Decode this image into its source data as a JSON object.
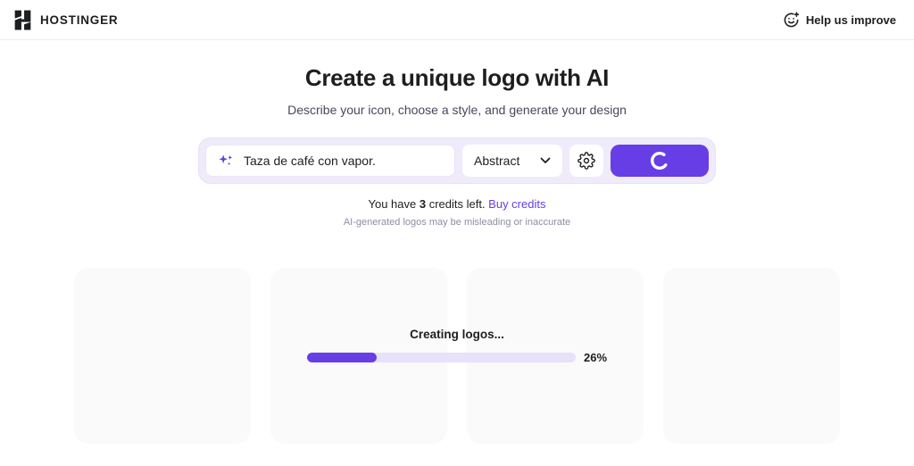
{
  "header": {
    "brand": "HOSTINGER",
    "help_label": "Help us improve"
  },
  "hero": {
    "title": "Create a unique logo with AI",
    "subtitle": "Describe your icon, choose a style, and generate your design"
  },
  "toolbar": {
    "prompt_value": "Taza de café con vapor.",
    "style_selected": "Abstract",
    "icons": {
      "prompt": "sparkle-icon",
      "style": "chevron-down-icon",
      "settings": "gear-icon",
      "generate": "spinner-icon"
    }
  },
  "credits": {
    "prefix": "You have ",
    "count": "3",
    "suffix": " credits left. ",
    "link": "Buy credits"
  },
  "disclaimer": "AI-generated logos may be misleading or inaccurate",
  "progress": {
    "label": "Creating logos...",
    "percent": 26,
    "percent_label": "26%"
  },
  "placeholders": {
    "count": 4
  },
  "colors": {
    "accent": "#673DE6",
    "toolbar_bg": "#EFEBFB",
    "track": "#E7E1F9",
    "card_bg": "#FAFAFB",
    "text_dark": "#1D1E20",
    "text_muted": "#8C8FA1"
  }
}
